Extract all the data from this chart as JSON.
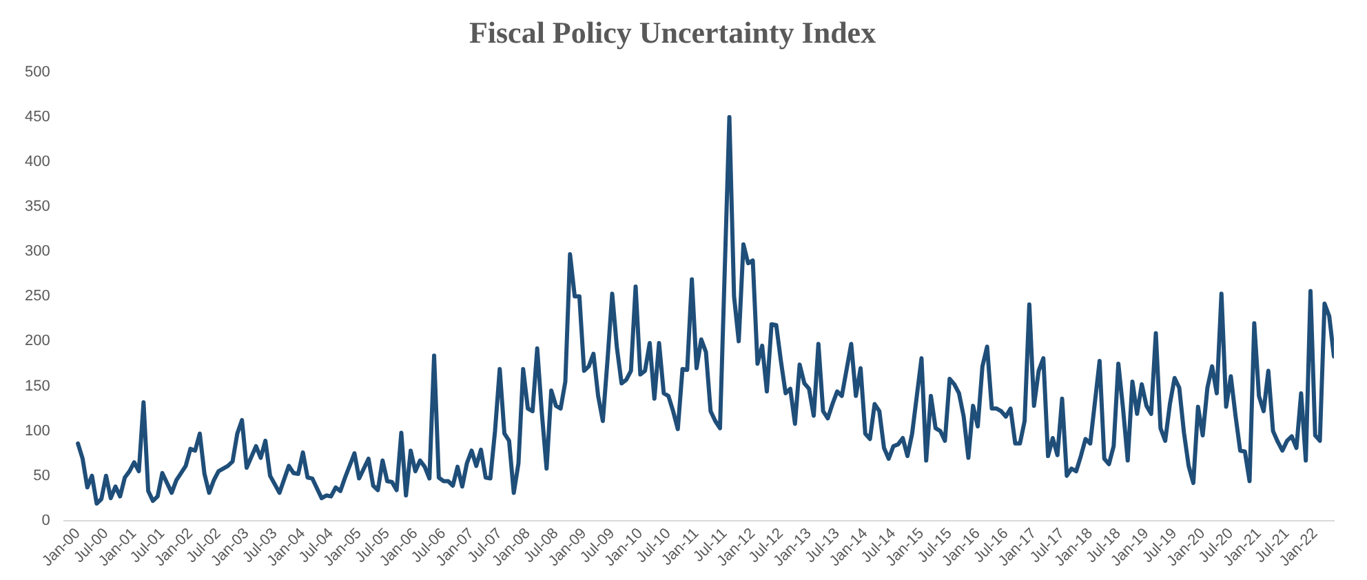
{
  "chart_data": {
    "type": "line",
    "title": "Fiscal Policy Uncertainty Index",
    "xlim": [
      "1999-10",
      "2022-05"
    ],
    "xticks": [
      {
        "value": "2000-01",
        "label": "Jan-00"
      },
      {
        "value": "2000-07",
        "label": "Jul-00"
      },
      {
        "value": "2001-01",
        "label": "Jan-01"
      },
      {
        "value": "2001-07",
        "label": "Jul-01"
      },
      {
        "value": "2002-01",
        "label": "Jan-02"
      },
      {
        "value": "2002-07",
        "label": "Jul-02"
      },
      {
        "value": "2003-01",
        "label": "Jan-03"
      },
      {
        "value": "2003-07",
        "label": "Jul-03"
      },
      {
        "value": "2004-01",
        "label": "Jan-04"
      },
      {
        "value": "2004-07",
        "label": "Jul-04"
      },
      {
        "value": "2005-01",
        "label": "Jan-05"
      },
      {
        "value": "2005-07",
        "label": "Jul-05"
      },
      {
        "value": "2006-01",
        "label": "Jan-06"
      },
      {
        "value": "2006-07",
        "label": "Jul-06"
      },
      {
        "value": "2007-01",
        "label": "Jan-07"
      },
      {
        "value": "2007-07",
        "label": "Jul-07"
      },
      {
        "value": "2008-01",
        "label": "Jan-08"
      },
      {
        "value": "2008-07",
        "label": "Jul-08"
      },
      {
        "value": "2009-01",
        "label": "Jan-09"
      },
      {
        "value": "2009-07",
        "label": "Jul-09"
      },
      {
        "value": "2010-01",
        "label": "Jan-10"
      },
      {
        "value": "2010-07",
        "label": "Jul-10"
      },
      {
        "value": "2011-01",
        "label": "Jan-11"
      },
      {
        "value": "2011-07",
        "label": "Jul-11"
      },
      {
        "value": "2012-01",
        "label": "Jan-12"
      },
      {
        "value": "2012-07",
        "label": "Jul-12"
      },
      {
        "value": "2013-01",
        "label": "Jan-13"
      },
      {
        "value": "2013-07",
        "label": "Jul-13"
      },
      {
        "value": "2014-01",
        "label": "Jan-14"
      },
      {
        "value": "2014-07",
        "label": "Jul-14"
      },
      {
        "value": "2015-01",
        "label": "Jan-15"
      },
      {
        "value": "2015-07",
        "label": "Jul-15"
      },
      {
        "value": "2016-01",
        "label": "Jan-16"
      },
      {
        "value": "2016-07",
        "label": "Jul-16"
      },
      {
        "value": "2017-01",
        "label": "Jan-17"
      },
      {
        "value": "2017-07",
        "label": "Jul-17"
      },
      {
        "value": "2018-01",
        "label": "Jan-18"
      },
      {
        "value": "2018-07",
        "label": "Jul-18"
      },
      {
        "value": "2019-01",
        "label": "Jan-19"
      },
      {
        "value": "2019-07",
        "label": "Jul-19"
      },
      {
        "value": "2020-01",
        "label": "Jan-20"
      },
      {
        "value": "2020-07",
        "label": "Jul-20"
      },
      {
        "value": "2021-01",
        "label": "Jan-21"
      },
      {
        "value": "2021-07",
        "label": "Jul-21"
      },
      {
        "value": "2022-01",
        "label": "Jan-22"
      }
    ],
    "ylim": [
      0,
      500
    ],
    "yticks": [
      0,
      50,
      100,
      150,
      200,
      250,
      300,
      350,
      400,
      450,
      500
    ],
    "series": [
      {
        "color": "#1f4e79",
        "x": [
          "2000-01",
          "2000-02",
          "2000-03",
          "2000-04",
          "2000-05",
          "2000-06",
          "2000-07",
          "2000-08",
          "2000-09",
          "2000-10",
          "2000-11",
          "2000-12",
          "2001-01",
          "2001-02",
          "2001-03",
          "2001-04",
          "2001-05",
          "2001-06",
          "2001-07",
          "2001-09",
          "2001-10",
          "2001-12",
          "2002-01",
          "2002-02",
          "2002-03",
          "2002-04",
          "2002-05",
          "2002-06",
          "2002-07",
          "2002-09",
          "2002-10",
          "2002-11",
          "2002-12",
          "2003-01",
          "2003-03",
          "2003-04",
          "2003-05",
          "2003-06",
          "2003-08",
          "2003-10",
          "2003-11",
          "2003-12",
          "2004-01",
          "2004-02",
          "2004-03",
          "2004-05",
          "2004-06",
          "2004-07",
          "2004-08",
          "2004-09",
          "2004-10",
          "2004-12",
          "2005-01",
          "2005-03",
          "2005-04",
          "2005-05",
          "2005-06",
          "2005-07",
          "2005-08",
          "2005-09",
          "2005-10",
          "2005-11",
          "2005-12",
          "2006-01",
          "2006-02",
          "2006-03",
          "2006-04",
          "2006-05",
          "2006-06",
          "2006-07",
          "2006-08",
          "2006-09",
          "2006-10",
          "2006-11",
          "2006-12",
          "2007-01",
          "2007-02",
          "2007-03",
          "2007-04",
          "2007-05",
          "2007-06",
          "2007-07",
          "2007-08",
          "2007-09",
          "2007-10",
          "2007-11",
          "2007-12",
          "2008-01",
          "2008-02",
          "2008-03",
          "2008-04",
          "2008-05",
          "2008-06",
          "2008-07",
          "2008-08",
          "2008-09",
          "2008-10",
          "2008-11",
          "2008-12",
          "2009-01",
          "2009-02",
          "2009-03",
          "2009-04",
          "2009-05",
          "2009-06",
          "2009-07",
          "2009-08",
          "2009-09",
          "2009-10",
          "2009-11",
          "2009-12",
          "2010-01",
          "2010-02",
          "2010-03",
          "2010-04",
          "2010-05",
          "2010-06",
          "2010-07",
          "2010-08",
          "2010-09",
          "2010-10",
          "2010-11",
          "2010-12",
          "2011-01",
          "2011-02",
          "2011-03",
          "2011-04",
          "2011-05",
          "2011-06",
          "2011-08",
          "2011-09",
          "2011-10",
          "2011-11",
          "2011-12",
          "2012-01",
          "2012-02",
          "2012-03",
          "2012-04",
          "2012-05",
          "2012-06",
          "2012-07",
          "2012-08",
          "2012-09",
          "2012-10",
          "2012-11",
          "2012-12",
          "2013-01",
          "2013-02",
          "2013-03",
          "2013-04",
          "2013-05",
          "2013-06",
          "2013-07",
          "2013-08",
          "2013-10",
          "2013-11",
          "2013-12",
          "2014-01",
          "2014-02",
          "2014-03",
          "2014-04",
          "2014-05",
          "2014-06",
          "2014-07",
          "2014-08",
          "2014-09",
          "2014-10",
          "2014-11",
          "2015-01",
          "2015-02",
          "2015-03",
          "2015-04",
          "2015-05",
          "2015-06",
          "2015-07",
          "2015-08",
          "2015-09",
          "2015-10",
          "2015-11",
          "2015-12",
          "2016-01",
          "2016-02",
          "2016-03",
          "2016-04",
          "2016-05",
          "2016-06",
          "2016-07",
          "2016-08",
          "2016-09",
          "2016-10",
          "2016-11",
          "2016-12",
          "2017-01",
          "2017-02",
          "2017-03",
          "2017-04",
          "2017-05",
          "2017-06",
          "2017-07",
          "2017-08",
          "2017-09",
          "2017-10",
          "2017-11",
          "2017-12",
          "2018-01",
          "2018-03",
          "2018-04",
          "2018-05",
          "2018-06",
          "2018-07",
          "2018-08",
          "2018-09",
          "2018-10",
          "2018-11",
          "2018-12",
          "2019-01",
          "2019-02",
          "2019-03",
          "2019-04",
          "2019-05",
          "2019-06",
          "2019-07",
          "2019-08",
          "2019-09",
          "2019-10",
          "2019-11",
          "2019-12",
          "2020-01",
          "2020-02",
          "2020-03",
          "2020-04",
          "2020-05",
          "2020-06",
          "2020-07",
          "2020-08",
          "2020-09",
          "2020-10",
          "2020-11",
          "2020-12",
          "2021-01",
          "2021-02",
          "2021-03",
          "2021-04",
          "2021-05",
          "2021-06",
          "2021-07",
          "2021-08",
          "2021-09",
          "2021-10",
          "2021-11",
          "2021-12",
          "2022-01",
          "2022-02",
          "2022-03",
          "2022-04",
          "2022-05"
        ],
        "values": [
          86,
          69,
          37,
          50,
          19,
          24,
          50,
          25,
          38,
          27,
          48,
          55,
          65,
          55,
          132,
          33,
          22,
          27,
          53,
          31,
          45,
          61,
          80,
          78,
          97,
          52,
          31,
          45,
          55,
          61,
          66,
          97,
          112,
          59,
          83,
          70,
          89,
          50,
          31,
          61,
          53,
          52,
          76,
          48,
          47,
          25,
          28,
          27,
          37,
          33,
          48,
          75,
          47,
          69,
          39,
          34,
          67,
          44,
          43,
          34,
          98,
          28,
          78,
          55,
          67,
          60,
          47,
          184,
          48,
          44,
          44,
          39,
          60,
          38,
          64,
          78,
          61,
          79,
          48,
          47,
          100,
          169,
          97,
          89,
          31,
          64,
          169,
          125,
          122,
          192,
          119,
          58,
          145,
          128,
          125,
          155,
          297,
          250,
          250,
          167,
          172,
          186,
          139,
          111,
          179,
          253,
          193,
          153,
          157,
          167,
          261,
          163,
          167,
          198,
          136,
          198,
          142,
          139,
          122,
          102,
          169,
          168,
          269,
          170,
          202,
          188,
          122,
          111,
          103,
          450,
          250,
          200,
          308,
          287,
          290,
          175,
          195,
          144,
          219,
          218,
          178,
          142,
          147,
          108,
          174,
          153,
          147,
          117,
          197,
          122,
          114,
          130,
          144,
          139,
          197,
          139,
          170,
          97,
          91,
          130,
          122,
          81,
          69,
          83,
          85,
          92,
          72,
          97,
          181,
          67,
          139,
          103,
          100,
          89,
          158,
          152,
          142,
          116,
          70,
          128,
          105,
          172,
          194,
          125,
          125,
          122,
          116,
          125,
          86,
          86,
          111,
          241,
          128,
          167,
          181,
          72,
          92,
          73,
          136,
          50,
          58,
          55,
          72,
          91,
          86,
          178,
          69,
          63,
          83,
          175,
          125,
          67,
          155,
          119,
          152,
          128,
          119,
          209,
          103,
          89,
          130,
          159,
          148,
          98,
          61,
          42,
          127,
          95,
          148,
          172,
          142,
          253,
          127,
          161,
          117,
          78,
          77,
          44,
          220,
          139,
          122,
          167,
          100,
          88,
          78,
          89,
          94,
          81,
          142,
          67,
          256,
          95,
          89,
          242,
          228,
          183
        ]
      }
    ]
  }
}
